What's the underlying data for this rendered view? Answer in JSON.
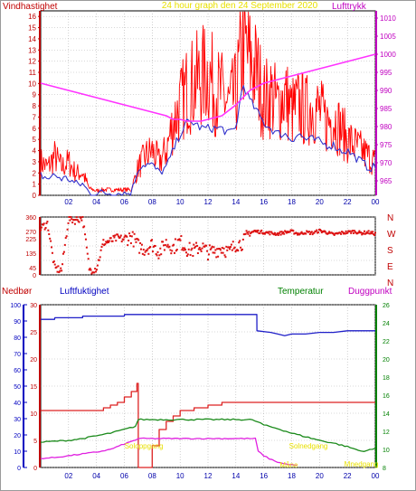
{
  "colors": {
    "wind_gust": "#ff0000",
    "wind_avg": "#3333cc",
    "pressure": "#ff33ff",
    "direction": "#dd1111",
    "rain": "#dd2222",
    "humidity": "#1f1fc8",
    "temperature": "#1a8a1a",
    "dewpoint": "#e020e0",
    "grid": "#a0a0a0",
    "annotation": "#e8e000",
    "axis_red": "#c00000",
    "axis_blue": "#0000c0",
    "axis_green": "#008000",
    "axis_magenta": "#c000c0"
  },
  "chart_data": [
    {
      "id": "wind_pressure",
      "type": "line",
      "title": "24 hour graph den   24 September 2020",
      "left_label": "Vindhastighet",
      "right_label": "Lufttrykk",
      "x_ticks": [
        "02",
        "04",
        "06",
        "08",
        "10",
        "12",
        "14",
        "16",
        "18",
        "20",
        "22",
        "00"
      ],
      "ylim_left": [
        0,
        16.5
      ],
      "y_ticks_left": [
        0,
        1,
        2,
        3,
        4,
        5,
        6,
        7,
        8,
        9,
        10,
        11,
        12,
        13,
        14,
        15,
        16
      ],
      "ylim_right": [
        961,
        1012
      ],
      "y_ticks_right": [
        965,
        970,
        975,
        980,
        985,
        990,
        995,
        1000,
        1005,
        1010
      ],
      "series": [
        {
          "name": "Vindhastighet",
          "axis": "left",
          "color": "#ff0000",
          "x": [
            0,
            0.5,
            1,
            1.5,
            2,
            2.5,
            3,
            3.5,
            4,
            4.5,
            5,
            5.5,
            6,
            6.5,
            7,
            7.5,
            8,
            8.5,
            9,
            9.5,
            10,
            10.5,
            11,
            11.5,
            12,
            12.5,
            13,
            13.5,
            14,
            14.5,
            15,
            15.5,
            16,
            16.5,
            17,
            17.5,
            18,
            18.5,
            19,
            19.5,
            20,
            20.5,
            21,
            21.5,
            22,
            22.5,
            23,
            23.5,
            24
          ],
          "y": [
            3,
            2.5,
            3.5,
            2.5,
            3,
            2,
            2,
            0.6,
            0.4,
            0.5,
            0.5,
            0.5,
            0.5,
            0.5,
            2.5,
            3.5,
            4,
            3,
            4,
            6.5,
            8,
            9.5,
            10,
            10.5,
            11,
            9.5,
            9,
            8,
            9,
            13.5,
            12,
            11,
            8.5,
            9,
            8,
            9,
            7.5,
            8,
            7.5,
            8,
            7.5,
            6.5,
            7,
            6,
            5,
            4.5,
            4,
            3.5,
            3
          ]
        },
        {
          "name": "Vindhastighet (middel)",
          "axis": "left",
          "color": "#3333cc",
          "x": [
            0,
            0.5,
            1,
            1.5,
            2,
            2.5,
            3,
            3.5,
            4,
            4.5,
            5,
            5.5,
            6,
            6.5,
            7,
            7.5,
            8,
            8.5,
            9,
            9.5,
            10,
            10.5,
            11,
            11.5,
            12,
            12.5,
            13,
            13.5,
            14,
            14.5,
            15,
            15.5,
            16,
            16.5,
            17,
            17.5,
            18,
            18.5,
            19,
            19.5,
            20,
            20.5,
            21,
            21.5,
            22,
            22.5,
            23,
            23.5,
            24
          ],
          "y": [
            1.8,
            1.5,
            1.8,
            1.5,
            1.5,
            1,
            1,
            0.2,
            0.2,
            0.2,
            0.2,
            0.2,
            0.2,
            0.2,
            2.5,
            2.8,
            2.7,
            2,
            2.5,
            4,
            5.5,
            6.5,
            6.5,
            6,
            6,
            6,
            6,
            5.5,
            6,
            10,
            8.5,
            7.5,
            6.5,
            6,
            5.5,
            5.5,
            5,
            5.5,
            5,
            5,
            4.8,
            4.5,
            4.5,
            4,
            4,
            3.5,
            3,
            2.5,
            2.5
          ]
        },
        {
          "name": "Lufttrykk",
          "axis": "right",
          "color": "#ff33ff",
          "x": [
            0,
            1,
            2,
            3,
            4,
            5,
            6,
            7,
            8,
            9,
            9.5,
            10,
            10.5,
            11,
            11.5,
            12,
            13,
            14,
            15,
            16,
            17,
            18,
            19,
            20,
            21,
            22,
            23,
            24
          ],
          "y": [
            992,
            991,
            990,
            989,
            988,
            987,
            986,
            985,
            984,
            983,
            982,
            982,
            981.5,
            981.5,
            981.5,
            982,
            983,
            986,
            990,
            992,
            993,
            994,
            995,
            996,
            997,
            998,
            999,
            1000
          ]
        }
      ]
    },
    {
      "id": "wind_direction",
      "type": "scatter",
      "y_ticks": [
        0,
        45,
        90,
        135,
        180,
        225,
        270,
        315,
        360
      ],
      "right_labels": [
        "N",
        "W",
        "S",
        "E",
        "N"
      ],
      "ylim": [
        0,
        360
      ],
      "x_ticks": [
        "02",
        "04",
        "06",
        "08",
        "10",
        "12",
        "14",
        "16",
        "18",
        "20",
        "22",
        "00"
      ],
      "series": [
        {
          "name": "Vindretning",
          "color": "#dd1111",
          "x": [
            0,
            0.5,
            1,
            1.5,
            2,
            2.5,
            3,
            3.5,
            4,
            4.5,
            5,
            5.5,
            6,
            6.5,
            7,
            7.5,
            8,
            8.5,
            9,
            9.5,
            10,
            10.5,
            11,
            11.5,
            12,
            12.5,
            13,
            13.5,
            14,
            14.5,
            15,
            15.5,
            16,
            16.5,
            17,
            17.5,
            18,
            18.5,
            19,
            19.5,
            20,
            20.5,
            21,
            21.5,
            22,
            22.5,
            23,
            23.5,
            24
          ],
          "y": [
            290,
            320,
            40,
            30,
            350,
            340,
            360,
            30,
            40,
            200,
            210,
            230,
            220,
            240,
            180,
            160,
            190,
            140,
            200,
            170,
            210,
            160,
            150,
            180,
            140,
            150,
            170,
            140,
            190,
            200,
            265,
            270,
            265,
            260,
            255,
            265,
            270,
            255,
            265,
            260,
            275,
            265,
            250,
            260,
            265,
            270,
            260,
            265,
            255
          ]
        }
      ]
    },
    {
      "id": "rain_humidity_temp",
      "type": "line",
      "labels": {
        "rain": "Nedbør",
        "humidity": "Luftfuktighet",
        "temperature": "Temperatur",
        "dewpoint": "Duggpunkt"
      },
      "x_ticks": [
        "02",
        "04",
        "06",
        "08",
        "10",
        "12",
        "14",
        "16",
        "18",
        "20",
        "22",
        "00"
      ],
      "humidity_ylim": [
        0,
        100
      ],
      "humidity_ticks": [
        0,
        10,
        20,
        30,
        40,
        50,
        60,
        70,
        80,
        90,
        100
      ],
      "rain_ylim": [
        0,
        30
      ],
      "rain_ticks": [
        0,
        5,
        10,
        15,
        20,
        25,
        30
      ],
      "temp_ylim": [
        8,
        26
      ],
      "temp_ticks": [
        8,
        10,
        12,
        14,
        16,
        18,
        20,
        22,
        24,
        26
      ],
      "annotations": [
        {
          "text": "Soloppgang",
          "x": 7.4
        },
        {
          "text": "Solnedgang",
          "x": 19.2
        },
        {
          "text": "Måne",
          "x": 17.8
        },
        {
          "text": "Mnedgang",
          "x": 23.0
        }
      ],
      "series": [
        {
          "name": "Luftfuktighet",
          "axis": "humidity",
          "color": "#1f1fc8",
          "x": [
            0,
            1,
            1.01,
            3,
            3.01,
            6,
            6.01,
            15.5,
            15.51,
            16.5,
            17,
            17.5,
            18,
            18.5,
            19,
            20,
            21,
            22,
            23,
            24
          ],
          "y": [
            91,
            91,
            92,
            92,
            93,
            93,
            94,
            94,
            84,
            83,
            82,
            81,
            82,
            82,
            82,
            83,
            83,
            84,
            84,
            84
          ]
        },
        {
          "name": "Nedbør",
          "axis": "rain",
          "color": "#dd2222",
          "x": [
            0,
            4,
            4.5,
            5,
            5.5,
            6,
            6.5,
            6.9,
            7,
            8,
            8.5,
            9,
            9.5,
            10,
            11,
            12,
            13,
            14,
            15,
            16,
            17,
            18,
            19,
            20,
            21,
            22,
            23,
            24
          ],
          "y": [
            10.5,
            10.5,
            11,
            11.5,
            12,
            13,
            14,
            15.5,
            0,
            4,
            7,
            8.5,
            9.5,
            10.5,
            11,
            11.5,
            12,
            12,
            12,
            12,
            12,
            12,
            12,
            12,
            12,
            12,
            12,
            12
          ]
        },
        {
          "name": "Temperatur",
          "axis": "temp",
          "color": "#1a8a1a",
          "x": [
            0,
            1,
            2,
            3,
            4,
            5,
            6,
            6.9,
            7,
            8,
            9,
            10,
            11,
            12,
            13,
            14,
            15,
            15.5,
            16,
            17,
            18,
            19,
            20,
            21,
            22,
            23,
            23.5,
            24
          ],
          "y": [
            10.8,
            10.9,
            11,
            11.2,
            11.5,
            11.8,
            12.2,
            12.6,
            13.3,
            13.3,
            13.3,
            13.3,
            13.3,
            13.3,
            13.3,
            13.3,
            13.3,
            13.1,
            12.7,
            12.3,
            11.8,
            11.4,
            11,
            10.7,
            10.3,
            9.8,
            9.9,
            10.1
          ]
        },
        {
          "name": "Duggpunkt",
          "axis": "temp",
          "color": "#e020e0",
          "x": [
            0,
            1,
            2,
            3,
            4,
            5,
            6,
            6.9,
            7,
            8,
            9,
            10,
            11,
            12,
            13,
            14,
            15,
            15.5,
            15.6,
            16,
            16.5,
            17,
            17.5,
            18,
            18.5
          ],
          "y": [
            9,
            9.1,
            9.3,
            9.5,
            9.7,
            10,
            10.6,
            11.1,
            11.2,
            11.2,
            11.2,
            11.2,
            11.2,
            11.2,
            11.2,
            11.2,
            11.2,
            11.2,
            9.8,
            9.3,
            8.9,
            8.6,
            8.4,
            8.3,
            8.2
          ]
        }
      ]
    }
  ]
}
